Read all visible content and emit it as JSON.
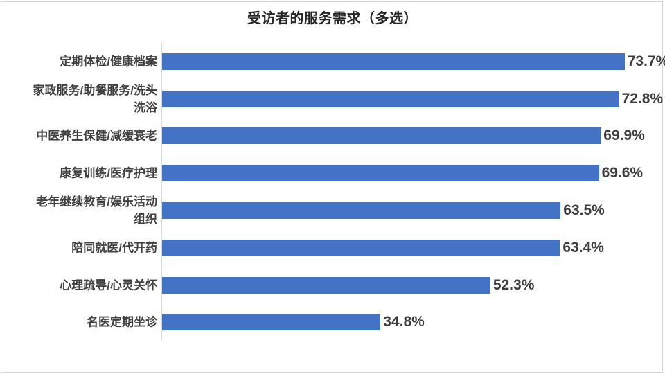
{
  "window": {
    "background_color": "#ffffff",
    "frame_border_color": "#d2d4d6"
  },
  "chart_data": {
    "type": "bar",
    "orientation": "horizontal",
    "title": "受访者的服务需求（多选）",
    "categories": [
      "定期体检/健康档案",
      "家政服务/助餐服务/洗头洗浴",
      "中医养生保健/减缓衰老",
      "康复训练/医疗护理",
      "老年继续教育/娱乐活动组织",
      "陪同就医/代开药",
      "心理疏导/心灵关怀",
      "名医定期坐诊"
    ],
    "category_lines": [
      [
        "定期体检/健康档案"
      ],
      [
        "家政服务/助餐服务/洗头",
        "洗浴"
      ],
      [
        "中医养生保健/减缓衰老"
      ],
      [
        "康复训练/医疗护理"
      ],
      [
        "老年继续教育/娱乐活动",
        "组织"
      ],
      [
        "陪同就医/代开药"
      ],
      [
        "心理疏导/心灵关怀"
      ],
      [
        "名医定期坐诊"
      ]
    ],
    "values": [
      73.7,
      72.8,
      69.9,
      69.6,
      63.5,
      63.4,
      52.3,
      34.8
    ],
    "value_labels": [
      "73.7%",
      "72.8%",
      "69.9%",
      "69.6%",
      "63.5%",
      "63.4%",
      "52.3%",
      "34.8%"
    ],
    "xlim": [
      0,
      80
    ],
    "xlabel": "",
    "ylabel": "",
    "grid": false,
    "legend": false,
    "value_label_position": "outside-end",
    "bar_color": "#4472C4",
    "axis_line_color": "#d9d9d9",
    "category_label_color": "#404040",
    "value_label_color": "#3d3d3d",
    "title_color": "#262626"
  }
}
